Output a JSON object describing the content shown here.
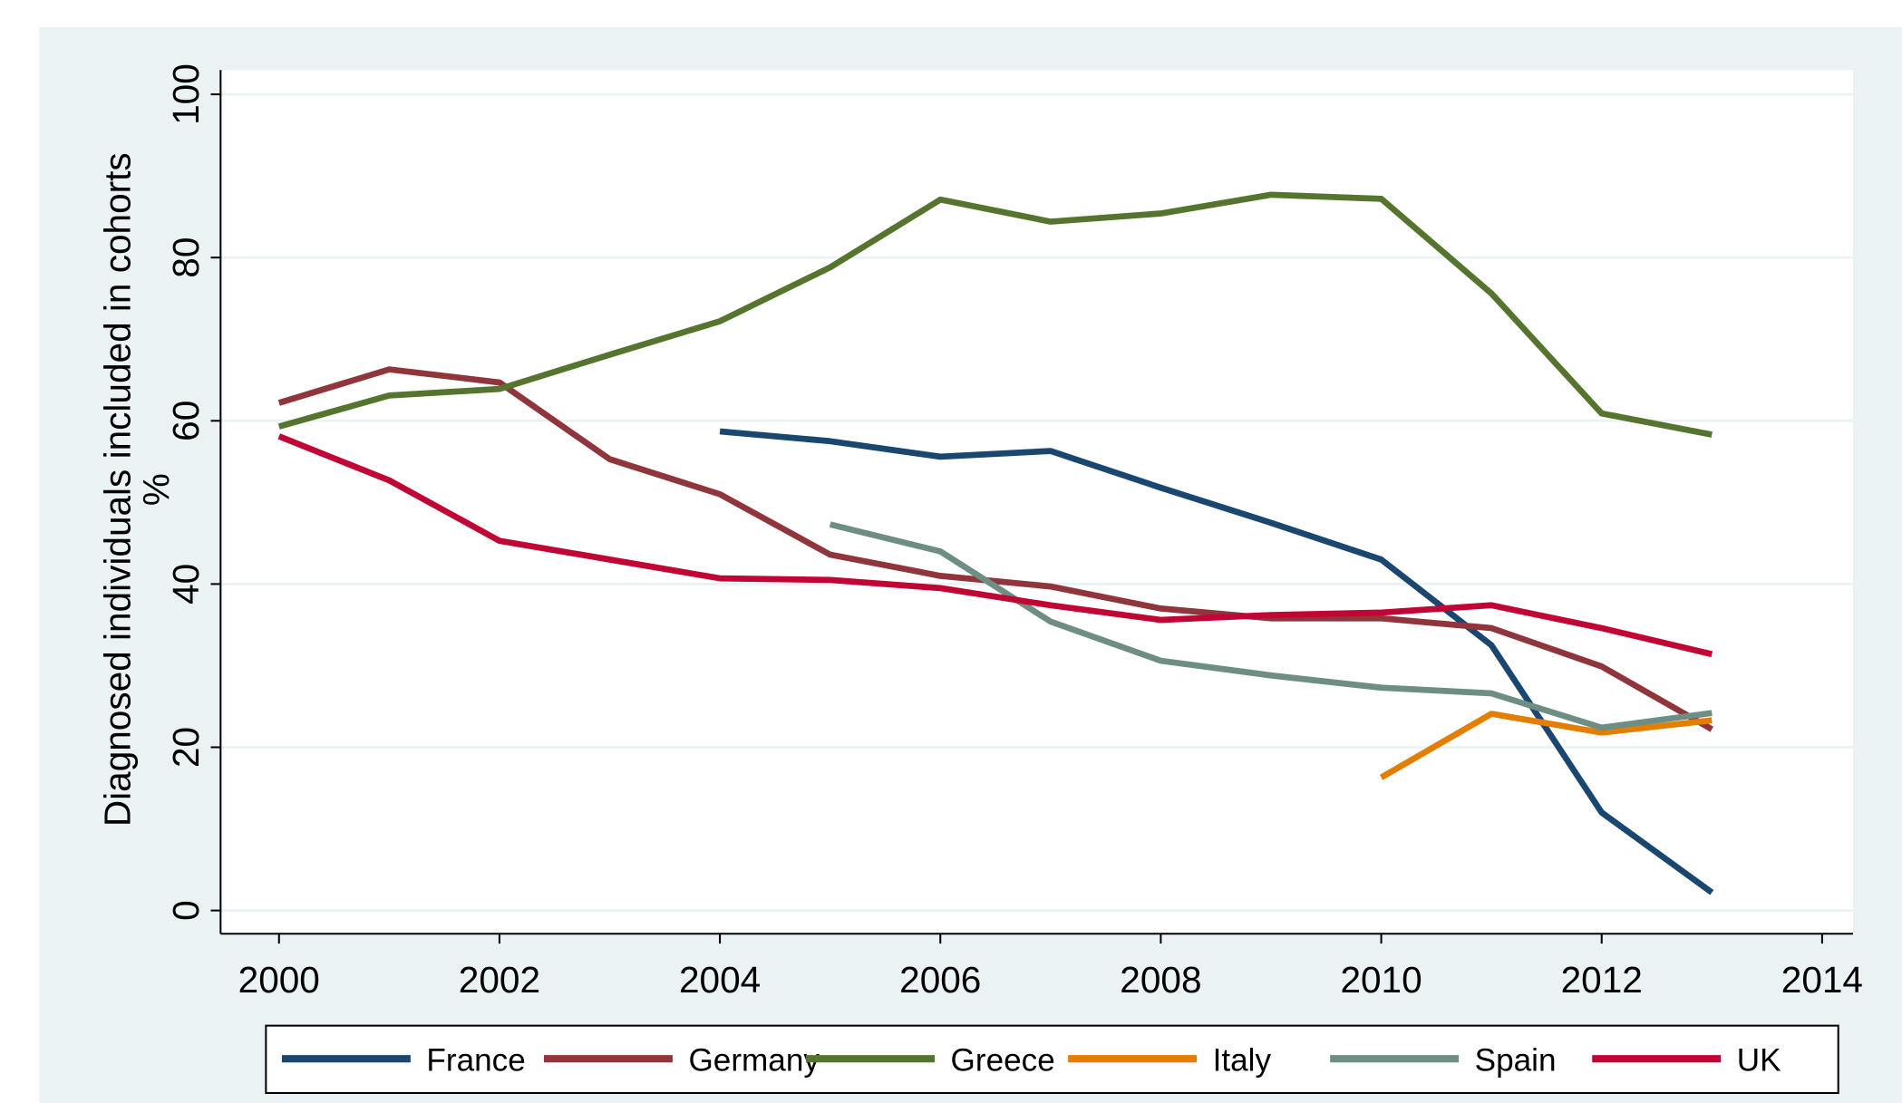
{
  "chart_data": {
    "type": "line",
    "ylabel": [
      "Diagnosed individuals included in cohorts",
      "%"
    ],
    "x": [
      2000,
      2001,
      2002,
      2003,
      2004,
      2005,
      2006,
      2007,
      2008,
      2009,
      2010,
      2011,
      2012,
      2013
    ],
    "series": [
      {
        "name": "France",
        "color": "#1a476f",
        "values": [
          null,
          null,
          null,
          null,
          58.7,
          57.5,
          55.6,
          56.3,
          51.8,
          47.5,
          43.0,
          32.5,
          12.0,
          2.2
        ]
      },
      {
        "name": "Germany",
        "color": "#90353b",
        "values": [
          62.2,
          66.3,
          64.7,
          55.3,
          51.0,
          43.6,
          41.0,
          39.7,
          37.0,
          35.8,
          35.8,
          34.6,
          29.9,
          22.2
        ]
      },
      {
        "name": "Greece",
        "color": "#55752f",
        "values": [
          59.3,
          63.1,
          63.9,
          68.1,
          72.2,
          78.8,
          87.1,
          84.4,
          85.4,
          87.7,
          87.2,
          75.6,
          60.9,
          58.3
        ]
      },
      {
        "name": "Italy",
        "color": "#e37e00",
        "values": [
          null,
          null,
          null,
          null,
          null,
          null,
          null,
          null,
          null,
          null,
          16.3,
          24.1,
          21.8,
          23.3
        ]
      },
      {
        "name": "Spain",
        "color": "#6e8e84",
        "values": [
          null,
          null,
          null,
          null,
          null,
          47.3,
          44.0,
          35.4,
          30.6,
          28.8,
          27.3,
          26.6,
          22.4,
          24.2
        ]
      },
      {
        "name": "UK",
        "color": "#c10534",
        "values": [
          58.1,
          52.7,
          45.3,
          43.0,
          40.7,
          40.5,
          39.5,
          37.4,
          35.6,
          36.2,
          36.5,
          37.4,
          34.6,
          31.4
        ]
      }
    ],
    "xlim": [
      1999.47,
      2014.28
    ],
    "xticks": [
      2000,
      2002,
      2004,
      2006,
      2008,
      2010,
      2012,
      2014
    ],
    "ylim": [
      -2.85,
      102.98
    ],
    "yticks": [
      0,
      20,
      40,
      60,
      80,
      100
    ],
    "grid": true,
    "legend": "bottom"
  }
}
